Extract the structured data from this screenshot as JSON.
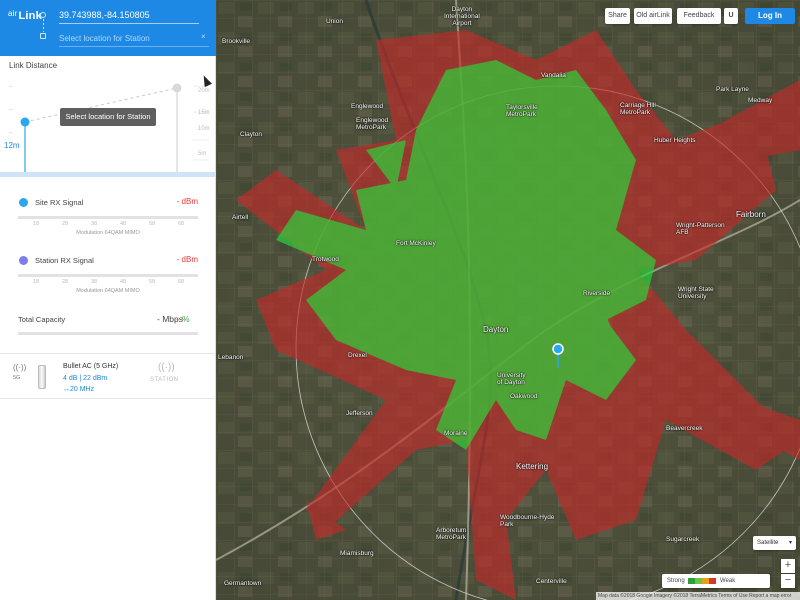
{
  "app": {
    "logo_prefix": "air",
    "logo_text": "Link"
  },
  "header": {
    "site_coordinates": "39.743988,-84.150805",
    "station_placeholder": "Select location for Station",
    "station_clear_glyph": "×"
  },
  "link_distance": {
    "title": "Link Distance",
    "site_height": "12m",
    "tooltip": "Select location for Station",
    "right_ticks": [
      "20m",
      "15m",
      "10m",
      "5m"
    ],
    "left_ticks": [
      "–",
      "–",
      "–"
    ]
  },
  "toolbar": {
    "collapse_icon": "‹",
    "save_icon": "💾",
    "folder_icon": "▰",
    "report_icon": "▤",
    "cart_icon": "🛒"
  },
  "site_signal": {
    "label": "Site RX Signal",
    "value": "- dBm",
    "scale": [
      "18",
      "28",
      "38",
      "48",
      "58",
      "68"
    ],
    "modulation": "Modulation 64QAM MIMO",
    "color": "#29a8f0"
  },
  "station_signal": {
    "label": "Station RX Signal",
    "value": "- dBm",
    "scale": [
      "18",
      "28",
      "38",
      "48",
      "58",
      "68"
    ],
    "modulation": "Modulation 64QAM MIMO",
    "color": "#7c7cf0"
  },
  "capacity": {
    "label": "Total Capacity",
    "value": "- Mbps",
    "separator": "-",
    "pct": "%"
  },
  "device": {
    "radio_icon": "((·))",
    "band": "5G",
    "name": "Bullet AC (5 GHz)",
    "specs": "4 dB | 22 dBm",
    "width": "↔20 MHz",
    "station_icon": "((·))",
    "station_label": "STATION"
  },
  "map_controls": {
    "share": "Share",
    "old_airlink": "Old airLink",
    "feedback": "Feedback",
    "magnet": "U",
    "login": "Log In",
    "map_type": "Satellite",
    "map_type_caret": "▾",
    "zoom_in": "+",
    "zoom_out": "−"
  },
  "legend": {
    "strong": "Strong",
    "weak": "Weak",
    "colors": [
      "#2e9e3a",
      "#6cc24a",
      "#e0a31c",
      "#d33a2c"
    ],
    "extras": "⊿ ✎"
  },
  "attribution": "Map data ©2018 Google Imagery ©2018 TerraMetrics   Terms of Use   Report a map error",
  "places": [
    {
      "name": "Dayton International Airport",
      "lines": [
        "Dayton",
        "International",
        "Airport"
      ]
    },
    {
      "name": "Taylorsville Metropark",
      "lines": [
        "Taylorsville",
        "MetroPark"
      ]
    },
    {
      "name": "Carriage Hill MetroPark",
      "lines": [
        "Carriage Hill",
        "MetroPark"
      ]
    },
    {
      "name": "Englewood",
      "lines": [
        "Englewood"
      ]
    },
    {
      "name": "Englewood MetroPark",
      "lines": [
        "Englewood",
        "MetroPark"
      ]
    },
    {
      "name": "Vandalia",
      "lines": [
        "Vandalia"
      ]
    },
    {
      "name": "Huber Heights",
      "lines": [
        "Huber Heights"
      ]
    },
    {
      "name": "Clayton",
      "lines": [
        "Clayton"
      ]
    },
    {
      "name": "Fairborn",
      "lines": [
        "Fairborn"
      ]
    },
    {
      "name": "Wright-Patterson AFB",
      "lines": [
        "Wright-Patterson",
        "AFB"
      ]
    },
    {
      "name": "Wright State University",
      "lines": [
        "Wright State",
        "University"
      ]
    },
    {
      "name": "Riverside",
      "lines": [
        "Riverside"
      ]
    },
    {
      "name": "Fort McKinley",
      "lines": [
        "Fort McKinley"
      ]
    },
    {
      "name": "Trotwood",
      "lines": [
        "Trotwood"
      ]
    },
    {
      "name": "Dayton",
      "lines": [
        "Dayton"
      ]
    },
    {
      "name": "University of Dayton",
      "lines": [
        "University",
        "of Dayton"
      ]
    },
    {
      "name": "Oakwood",
      "lines": [
        "Oakwood"
      ]
    },
    {
      "name": "Kettering",
      "lines": [
        "Kettering"
      ]
    },
    {
      "name": "Beavercreek",
      "lines": [
        "Beavercreek"
      ]
    },
    {
      "name": "Moraine",
      "lines": [
        "Moraine"
      ]
    },
    {
      "name": "Jefferson",
      "lines": [
        "Jefferson"
      ]
    },
    {
      "name": "Drexel",
      "lines": [
        "Drexel"
      ]
    },
    {
      "name": "Arboretum MetroPark",
      "lines": [
        "Arboretum",
        "MetroPark"
      ]
    },
    {
      "name": "Woodbourne-Hyde Park",
      "lines": [
        "Woodbourne-Hyde",
        "Park"
      ]
    },
    {
      "name": "Centerville",
      "lines": [
        "Centerville"
      ]
    },
    {
      "name": "Miamisburg",
      "lines": [
        "Miamisburg"
      ]
    },
    {
      "name": "Germantown",
      "lines": [
        "Germantown"
      ]
    },
    {
      "name": "Sugarcreek",
      "lines": [
        "Sugarcreek"
      ]
    },
    {
      "name": "Brookville",
      "lines": [
        "Brookville"
      ]
    },
    {
      "name": "Union",
      "lines": [
        "Union"
      ]
    },
    {
      "name": "Medway",
      "lines": [
        "Medway"
      ]
    },
    {
      "name": "Park Layne",
      "lines": [
        "Park Layne"
      ]
    },
    {
      "name": "Airtell",
      "lines": [
        "Airtell"
      ]
    },
    {
      "name": "Lebanon",
      "lines": [
        "Lebanon"
      ]
    },
    {
      "name": "Beavercreek Twp",
      "lines": [
        "Beavercreek"
      ]
    }
  ]
}
